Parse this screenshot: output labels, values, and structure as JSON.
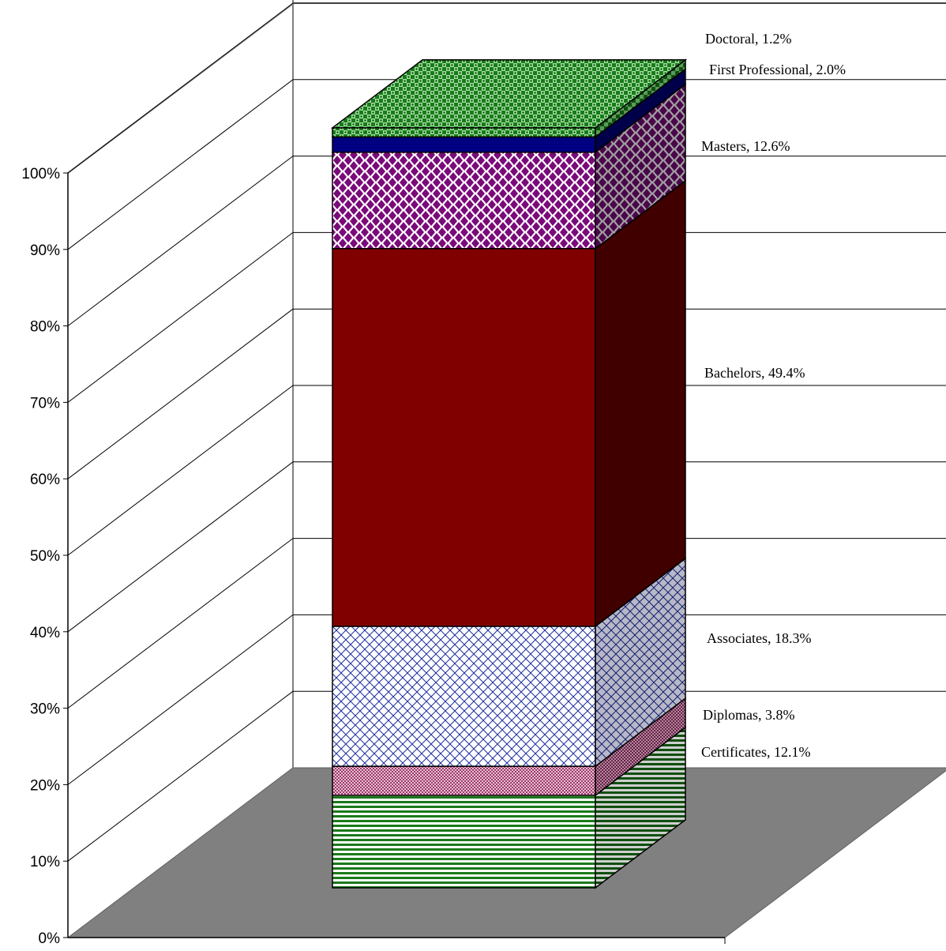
{
  "chart_data": {
    "type": "bar",
    "subtype": "stacked-100-3d",
    "title": "",
    "xlabel": "",
    "ylabel": "",
    "ylim": [
      0,
      100
    ],
    "y_ticks": [
      "0%",
      "10%",
      "20%",
      "30%",
      "40%",
      "50%",
      "60%",
      "70%",
      "80%",
      "90%",
      "100%"
    ],
    "grid": true,
    "legend": "none",
    "segments": [
      {
        "name": "Certificates",
        "value": 12.1,
        "label": "Certificates, 12.1%",
        "color": "#1a7a1a",
        "pattern": "horizontal-stripes"
      },
      {
        "name": "Diplomas",
        "value": 3.8,
        "label": "Diplomas, 3.8%",
        "color": "#b0507a",
        "pattern": "fine-dots"
      },
      {
        "name": "Associates",
        "value": 18.3,
        "label": "Associates, 18.3%",
        "color": "#1e2e9e",
        "pattern": "diagonal-grid"
      },
      {
        "name": "Bachelors",
        "value": 49.4,
        "label": "Bachelors, 49.4%",
        "color": "#800000",
        "pattern": "solid"
      },
      {
        "name": "Masters",
        "value": 12.6,
        "label": "Masters, 12.6%",
        "color": "#7a0a7a",
        "pattern": "diamonds"
      },
      {
        "name": "First Professional",
        "value": 2.0,
        "label": "First Professional, 2.0%",
        "color": "#000080",
        "pattern": "solid"
      },
      {
        "name": "Doctoral",
        "value": 1.2,
        "label": "Doctoral, 1.2%",
        "color": "#1a7a1a",
        "pattern": "checker"
      }
    ],
    "colors": {
      "floor": "#808080",
      "walls": "#ffffff",
      "gridline": "#000000",
      "outline": "#000000"
    }
  }
}
